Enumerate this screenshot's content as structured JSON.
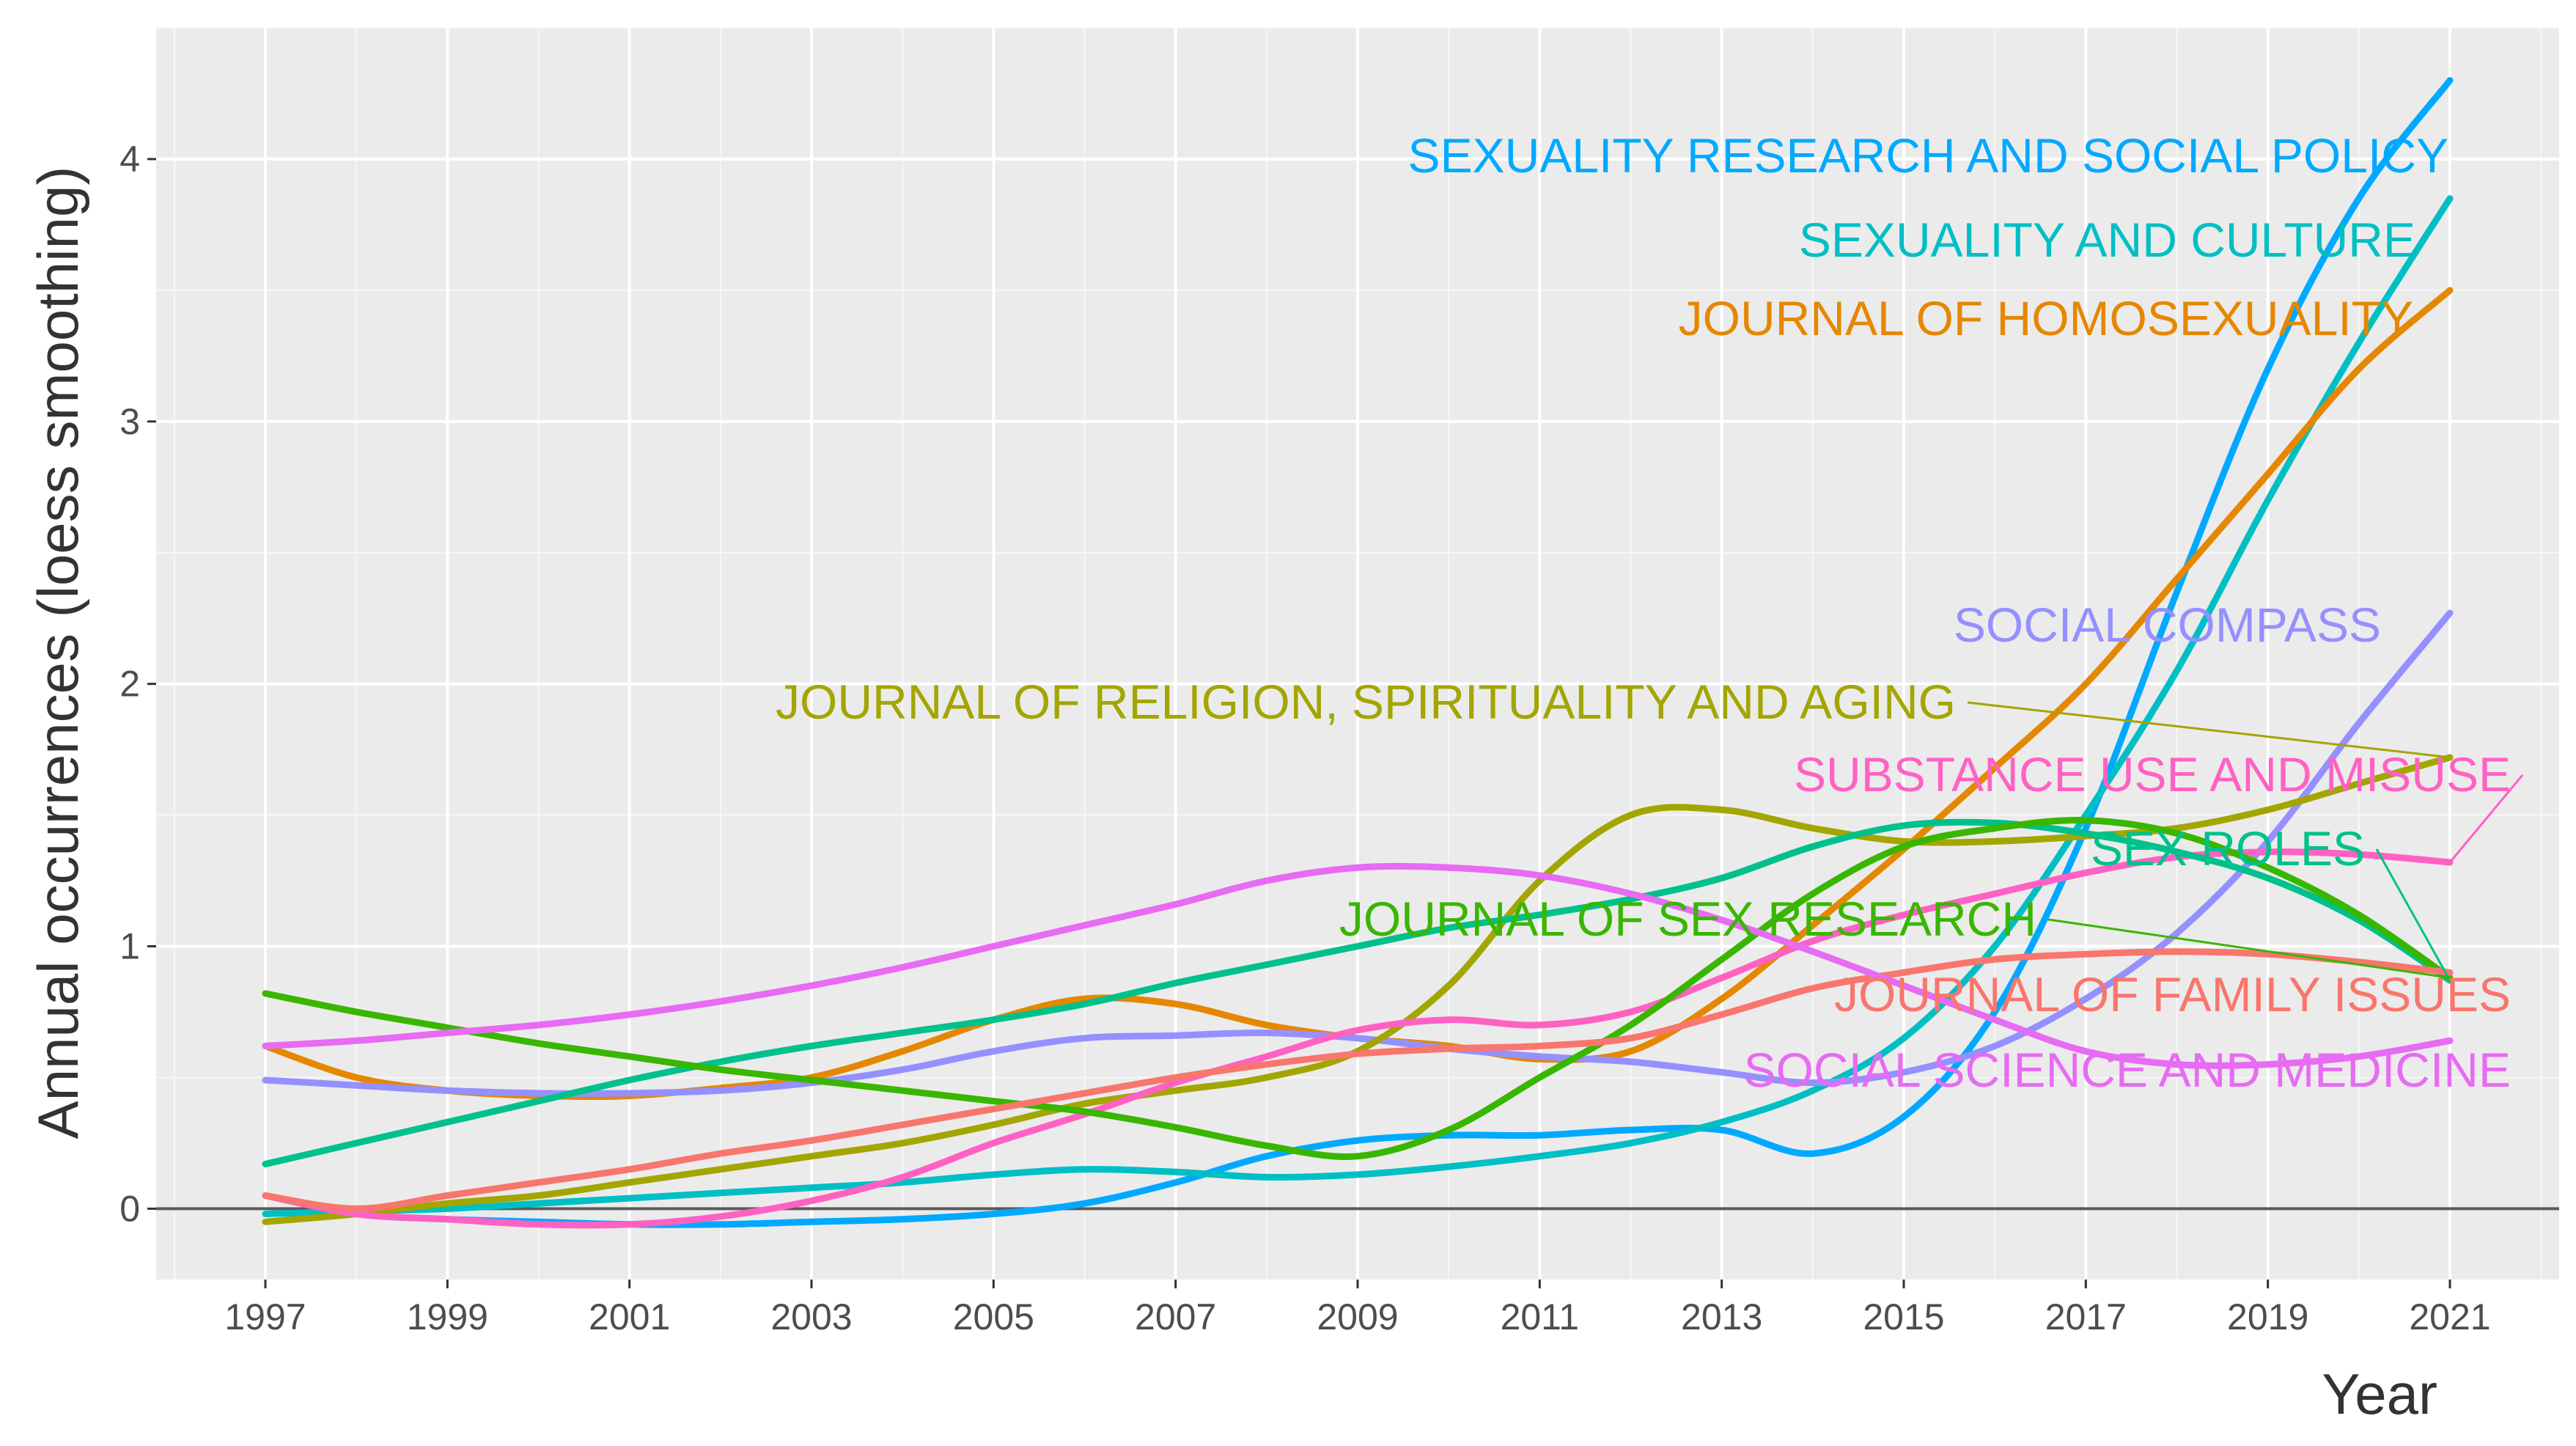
{
  "chart_data": {
    "type": "line",
    "title": "",
    "xlabel": "Year",
    "ylabel": "Annual occurrences (loess smoothing)",
    "xlim": [
      1995.8,
      2022.2
    ],
    "ylim": [
      -0.27,
      4.5
    ],
    "x_ticks": [
      "1997",
      "1999",
      "2001",
      "2003",
      "2005",
      "2007",
      "2009",
      "2011",
      "2013",
      "2015",
      "2017",
      "2019",
      "2021"
    ],
    "y_ticks": [
      "0",
      "1",
      "2",
      "3",
      "4"
    ],
    "grid": true,
    "legend": "direct labels at right",
    "x": [
      1997,
      1998,
      1999,
      2000,
      2001,
      2002,
      2003,
      2004,
      2005,
      2006,
      2007,
      2008,
      2009,
      2010,
      2011,
      2012,
      2013,
      2014,
      2015,
      2016,
      2017,
      2018,
      2019,
      2020,
      2021
    ],
    "series": [
      {
        "name": "SEXUALITY RESEARCH AND SOCIAL POLICY",
        "color": "#00a9ff",
        "values": [
          0.05,
          -0.02,
          -0.04,
          -0.05,
          -0.06,
          -0.06,
          -0.05,
          -0.04,
          -0.02,
          0.02,
          0.1,
          0.2,
          0.26,
          0.28,
          0.28,
          0.3,
          0.3,
          0.21,
          0.35,
          0.75,
          1.45,
          2.35,
          3.2,
          3.85,
          4.3
        ]
      },
      {
        "name": "SEXUALITY AND CULTURE",
        "color": "#00bfc4",
        "values": [
          -0.02,
          -0.01,
          0.0,
          0.02,
          0.04,
          0.06,
          0.08,
          0.1,
          0.13,
          0.15,
          0.14,
          0.12,
          0.13,
          0.16,
          0.2,
          0.25,
          0.33,
          0.45,
          0.65,
          1.0,
          1.5,
          2.05,
          2.7,
          3.3,
          3.85
        ]
      },
      {
        "name": "JOURNAL OF HOMOSEXUALITY",
        "color": "#e58700",
        "values": [
          0.62,
          0.5,
          0.45,
          0.43,
          0.43,
          0.46,
          0.5,
          0.6,
          0.72,
          0.8,
          0.78,
          0.7,
          0.65,
          0.62,
          0.57,
          0.6,
          0.8,
          1.08,
          1.37,
          1.68,
          2.0,
          2.4,
          2.8,
          3.2,
          3.5
        ]
      },
      {
        "name": "SOCIAL COMPASS",
        "color": "#9590ff",
        "values": [
          0.49,
          0.47,
          0.45,
          0.44,
          0.44,
          0.45,
          0.48,
          0.53,
          0.6,
          0.65,
          0.66,
          0.67,
          0.65,
          0.61,
          0.58,
          0.56,
          0.52,
          0.48,
          0.52,
          0.62,
          0.8,
          1.05,
          1.4,
          1.85,
          2.27
        ]
      },
      {
        "name": "JOURNAL OF RELIGION, SPIRITUALITY AND AGING",
        "color": "#a3a500",
        "values": [
          -0.05,
          -0.02,
          0.02,
          0.05,
          0.1,
          0.15,
          0.2,
          0.25,
          0.32,
          0.4,
          0.45,
          0.5,
          0.6,
          0.85,
          1.25,
          1.5,
          1.52,
          1.45,
          1.4,
          1.4,
          1.42,
          1.45,
          1.52,
          1.62,
          1.72
        ]
      },
      {
        "name": "SUBSTANCE USE AND MISUSE",
        "color": "#ff61c3",
        "values": [
          0.05,
          -0.02,
          -0.04,
          -0.06,
          -0.06,
          -0.03,
          0.03,
          0.12,
          0.25,
          0.36,
          0.48,
          0.58,
          0.68,
          0.72,
          0.7,
          0.75,
          0.88,
          1.02,
          1.12,
          1.2,
          1.28,
          1.34,
          1.36,
          1.35,
          1.32
        ]
      },
      {
        "name": "SEX ROLES",
        "color": "#00c08b",
        "values": [
          0.17,
          0.25,
          0.33,
          0.41,
          0.49,
          0.56,
          0.62,
          0.67,
          0.72,
          0.78,
          0.86,
          0.93,
          1.0,
          1.07,
          1.12,
          1.18,
          1.26,
          1.38,
          1.46,
          1.47,
          1.43,
          1.36,
          1.26,
          1.1,
          0.87
        ]
      },
      {
        "name": "JOURNAL OF SEX RESEARCH",
        "color": "#39b600",
        "values": [
          0.82,
          0.75,
          0.69,
          0.63,
          0.58,
          0.53,
          0.49,
          0.45,
          0.41,
          0.37,
          0.31,
          0.24,
          0.2,
          0.3,
          0.5,
          0.7,
          0.95,
          1.2,
          1.38,
          1.45,
          1.48,
          1.43,
          1.3,
          1.12,
          0.88
        ]
      },
      {
        "name": "JOURNAL OF FAMILY ISSUES",
        "color": "#f8766d",
        "values": [
          0.05,
          0.0,
          0.05,
          0.1,
          0.15,
          0.21,
          0.26,
          0.32,
          0.38,
          0.44,
          0.5,
          0.55,
          0.59,
          0.61,
          0.62,
          0.65,
          0.74,
          0.84,
          0.9,
          0.95,
          0.97,
          0.98,
          0.97,
          0.94,
          0.9
        ]
      },
      {
        "name": "SOCIAL SCIENCE AND MEDICINE",
        "color": "#e76bf3",
        "values": [
          0.62,
          0.64,
          0.67,
          0.7,
          0.74,
          0.79,
          0.85,
          0.92,
          1.0,
          1.08,
          1.16,
          1.25,
          1.3,
          1.3,
          1.27,
          1.2,
          1.1,
          0.98,
          0.85,
          0.72,
          0.6,
          0.55,
          0.55,
          0.58,
          0.64
        ]
      }
    ],
    "label_order": [
      "SEXUALITY RESEARCH AND SOCIAL POLICY",
      "SEXUALITY AND CULTURE",
      "JOURNAL OF HOMOSEXUALITY",
      "SOCIAL COMPASS",
      "JOURNAL OF RELIGION, SPIRITUALITY AND AGING",
      "SUBSTANCE USE AND MISUSE",
      "SEX ROLES",
      "JOURNAL OF SEX RESEARCH",
      "JOURNAL OF FAMILY ISSUES",
      "SOCIAL SCIENCE AND MEDICINE"
    ]
  }
}
